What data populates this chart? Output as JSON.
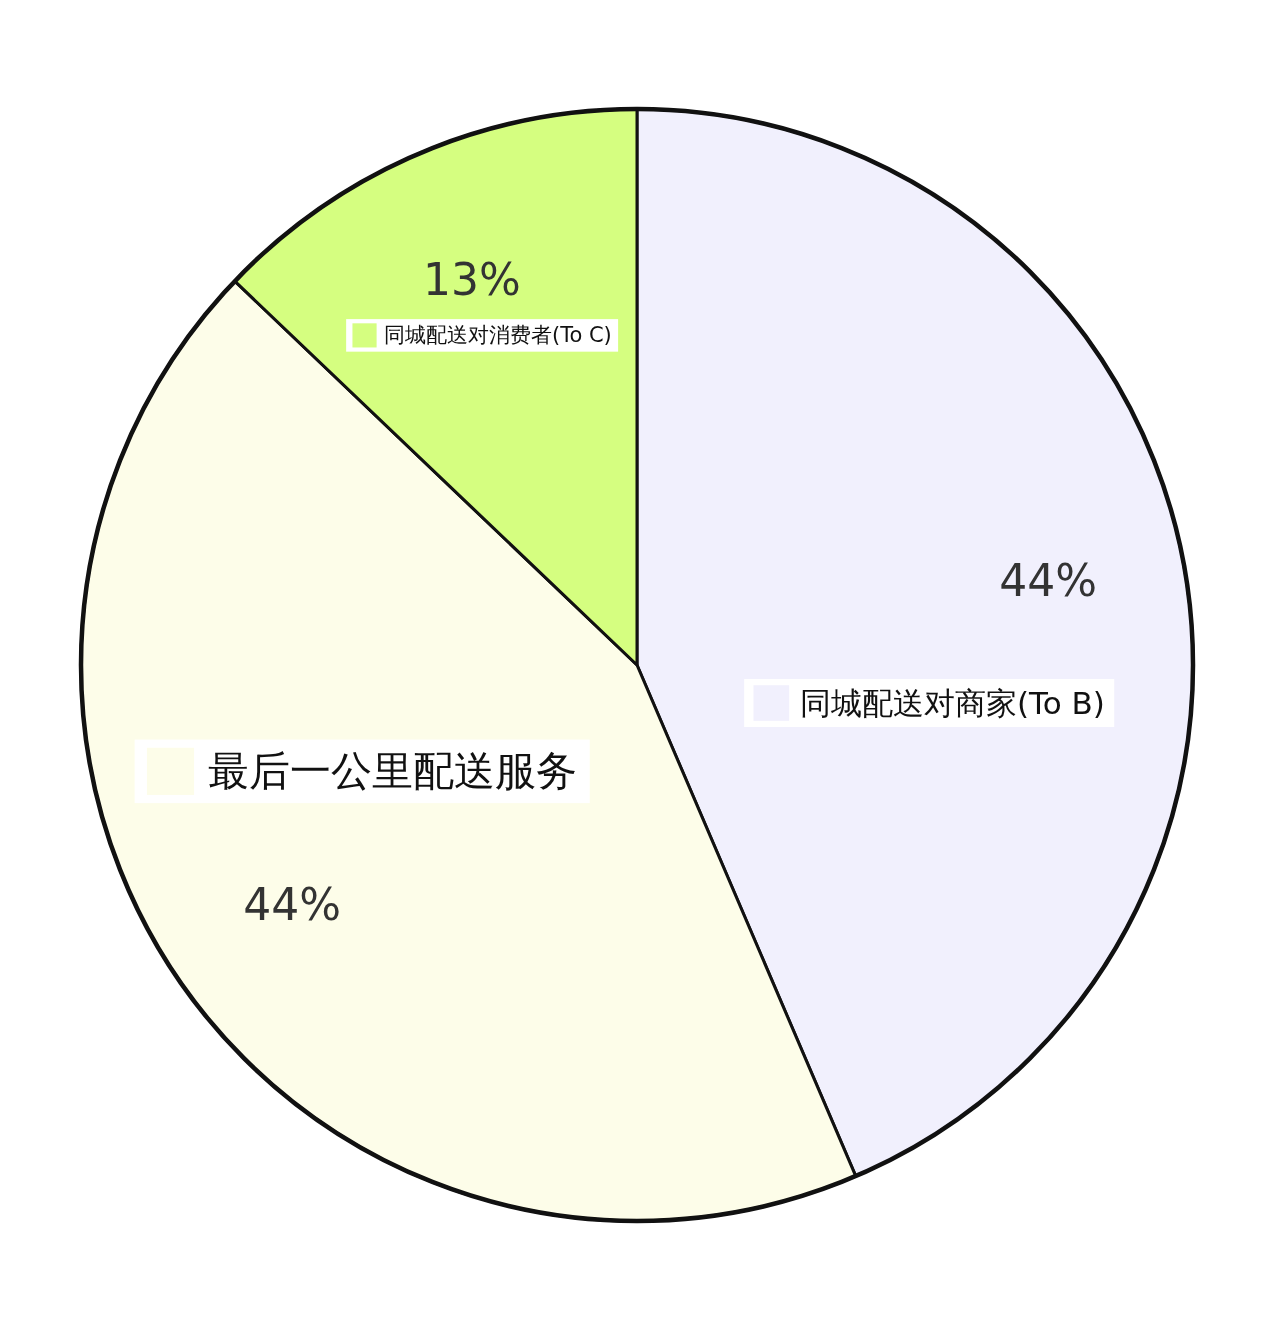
{
  "chart_data": {
    "type": "pie",
    "categories": [
      "同城配送对商家(To B)",
      "最后一公里配送服务",
      "同城配送对消费者(To C)"
    ],
    "values": [
      44,
      44,
      13
    ],
    "colors": [
      "#f1f0fd",
      "#fdfde9",
      "#d5fe80"
    ],
    "value_labels": [
      "44%",
      "44%",
      "13%"
    ],
    "legend": "center"
  }
}
